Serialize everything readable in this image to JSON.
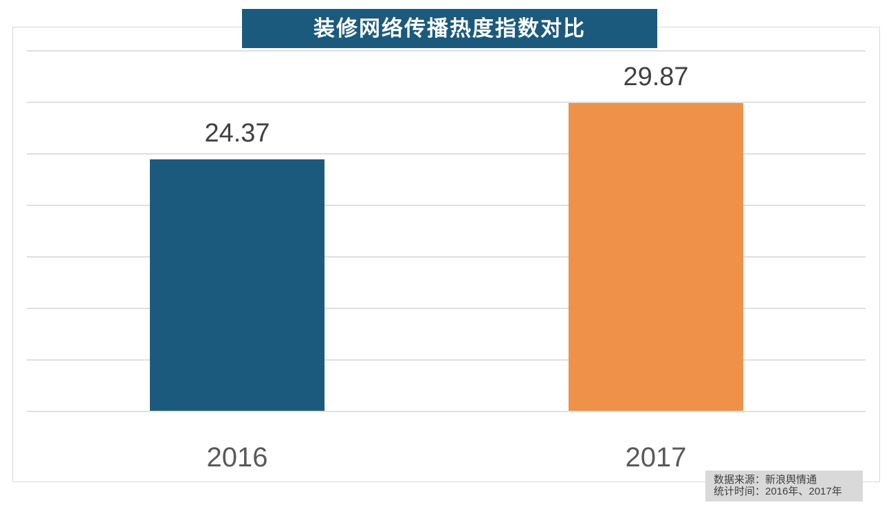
{
  "page": {
    "background": "#ffffff"
  },
  "title_bar": {
    "background": "#1b5a7c",
    "text_color": "#ffffff"
  },
  "chart_data": {
    "type": "bar",
    "title": "装修网络传播热度指数对比",
    "categories": [
      "2016",
      "2017"
    ],
    "values": [
      24.37,
      29.87
    ],
    "value_labels": [
      "24.37",
      "29.87"
    ],
    "colors": [
      "#1b5a7c",
      "#ef9149"
    ],
    "xlabel": "",
    "ylabel": "",
    "ylim": [
      0,
      35
    ],
    "gridline_step": 5,
    "grid": "on",
    "legend": "none",
    "value_label_color": "#404040",
    "category_label_color": "#595959",
    "gridline_color": "#dfdfdf"
  },
  "footer": {
    "source_line": "数据来源：新浪舆情通",
    "time_line": "统计时间：2016年、2017年",
    "background": "#d9d9d9",
    "text_color": "#404040"
  }
}
